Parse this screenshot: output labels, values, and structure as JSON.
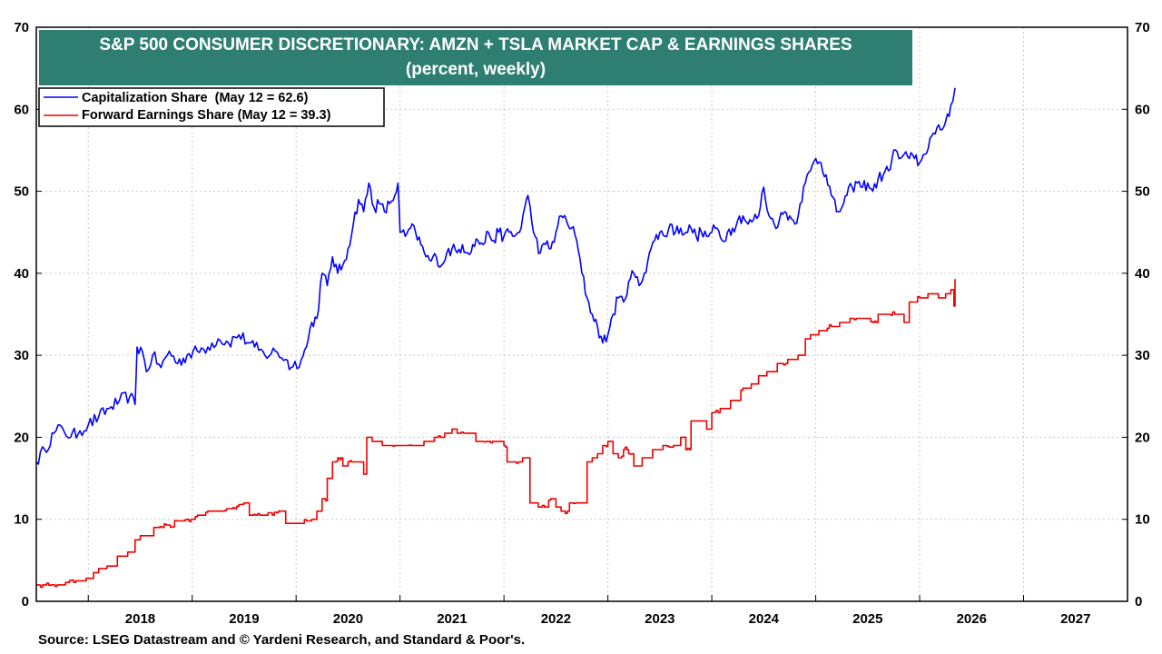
{
  "chart_data": {
    "type": "line",
    "title_line1": "S&P 500 CONSUMER DISCRETIONARY: AMZN + TSLA MARKET CAP & EARNINGS SHARES",
    "title_line2": "(percent, weekly)",
    "xlabel": "",
    "ylabel": "",
    "x_range": [
      2017.5,
      2028.0
    ],
    "ylim": [
      0,
      70
    ],
    "y_ticks": [
      0,
      10,
      20,
      30,
      40,
      50,
      60,
      70
    ],
    "x_tick_labels": [
      "2018",
      "2019",
      "2020",
      "2021",
      "2022",
      "2023",
      "2024",
      "2025",
      "2026",
      "2027"
    ],
    "x_tick_label_positions": [
      2018.5,
      2019.5,
      2020.5,
      2021.5,
      2022.5,
      2023.5,
      2024.5,
      2025.5,
      2026.5,
      2027.5
    ],
    "x_year_boundaries": [
      2018,
      2019,
      2020,
      2021,
      2022,
      2023,
      2024,
      2025,
      2026,
      2027,
      2028
    ],
    "grid": true,
    "legend_position": "top-left",
    "colors": {
      "title_bg": "#2e7f72",
      "cap_line": "#0000ff",
      "earn_line": "#ee0000",
      "grid": "#c8c8c8"
    },
    "series": [
      {
        "name": "Capitalization Share  (May 12 = 62.6)",
        "color": "#0000ff",
        "points": [
          [
            2017.5,
            17.0
          ],
          [
            2017.58,
            18.5
          ],
          [
            2017.67,
            20.5
          ],
          [
            2017.75,
            21.2
          ],
          [
            2017.83,
            20.0
          ],
          [
            2017.92,
            20.8
          ],
          [
            2018.0,
            21.5
          ],
          [
            2018.1,
            22.5
          ],
          [
            2018.2,
            23.5
          ],
          [
            2018.3,
            24.5
          ],
          [
            2018.4,
            25.0
          ],
          [
            2018.45,
            24.0
          ],
          [
            2018.47,
            31.0
          ],
          [
            2018.52,
            30.5
          ],
          [
            2018.56,
            28.0
          ],
          [
            2018.62,
            30.0
          ],
          [
            2018.7,
            28.5
          ],
          [
            2018.78,
            30.5
          ],
          [
            2018.86,
            29.0
          ],
          [
            2018.95,
            30.0
          ],
          [
            2019.05,
            30.5
          ],
          [
            2019.15,
            31.0
          ],
          [
            2019.25,
            32.0
          ],
          [
            2019.35,
            31.5
          ],
          [
            2019.45,
            32.5
          ],
          [
            2019.55,
            31.5
          ],
          [
            2019.6,
            31.0
          ],
          [
            2019.7,
            30.0
          ],
          [
            2019.8,
            30.5
          ],
          [
            2019.9,
            29.5
          ],
          [
            2019.95,
            28.5
          ],
          [
            2020.05,
            29.5
          ],
          [
            2020.1,
            31.0
          ],
          [
            2020.15,
            34.0
          ],
          [
            2020.2,
            34.5
          ],
          [
            2020.25,
            40.0
          ],
          [
            2020.3,
            38.5
          ],
          [
            2020.35,
            42.0
          ],
          [
            2020.4,
            40.0
          ],
          [
            2020.45,
            41.0
          ],
          [
            2020.5,
            43.0
          ],
          [
            2020.55,
            46.0
          ],
          [
            2020.6,
            49.0
          ],
          [
            2020.65,
            47.5
          ],
          [
            2020.7,
            51.0
          ],
          [
            2020.75,
            48.0
          ],
          [
            2020.8,
            48.5
          ],
          [
            2020.85,
            47.5
          ],
          [
            2020.9,
            48.5
          ],
          [
            2020.95,
            49.5
          ],
          [
            2020.98,
            51.0
          ],
          [
            2021.0,
            45.0
          ],
          [
            2021.05,
            44.5
          ],
          [
            2021.1,
            45.5
          ],
          [
            2021.15,
            45.0
          ],
          [
            2021.2,
            43.5
          ],
          [
            2021.25,
            42.0
          ],
          [
            2021.3,
            41.5
          ],
          [
            2021.35,
            42.0
          ],
          [
            2021.4,
            41.0
          ],
          [
            2021.45,
            42.5
          ],
          [
            2021.5,
            43.0
          ],
          [
            2021.55,
            42.5
          ],
          [
            2021.6,
            43.5
          ],
          [
            2021.65,
            42.5
          ],
          [
            2021.7,
            43.5
          ],
          [
            2021.75,
            44.0
          ],
          [
            2021.8,
            43.5
          ],
          [
            2021.85,
            45.0
          ],
          [
            2021.9,
            44.0
          ],
          [
            2021.95,
            45.0
          ],
          [
            2022.0,
            44.5
          ],
          [
            2022.05,
            45.0
          ],
          [
            2022.1,
            44.5
          ],
          [
            2022.15,
            45.0
          ],
          [
            2022.2,
            48.0
          ],
          [
            2022.23,
            49.5
          ],
          [
            2022.27,
            46.0
          ],
          [
            2022.3,
            44.5
          ],
          [
            2022.35,
            42.5
          ],
          [
            2022.4,
            43.5
          ],
          [
            2022.45,
            43.0
          ],
          [
            2022.5,
            45.0
          ],
          [
            2022.55,
            47.0
          ],
          [
            2022.6,
            46.5
          ],
          [
            2022.65,
            45.5
          ],
          [
            2022.7,
            44.0
          ],
          [
            2022.75,
            40.0
          ],
          [
            2022.8,
            37.0
          ],
          [
            2022.85,
            35.0
          ],
          [
            2022.9,
            33.5
          ],
          [
            2022.95,
            31.5
          ],
          [
            2023.0,
            32.5
          ],
          [
            2023.05,
            35.0
          ],
          [
            2023.1,
            37.0
          ],
          [
            2023.15,
            36.5
          ],
          [
            2023.2,
            39.0
          ],
          [
            2023.25,
            40.0
          ],
          [
            2023.3,
            38.5
          ],
          [
            2023.35,
            40.0
          ],
          [
            2023.4,
            42.5
          ],
          [
            2023.45,
            44.0
          ],
          [
            2023.5,
            45.0
          ],
          [
            2023.55,
            44.5
          ],
          [
            2023.6,
            46.0
          ],
          [
            2023.65,
            45.0
          ],
          [
            2023.7,
            45.5
          ],
          [
            2023.75,
            45.0
          ],
          [
            2023.8,
            45.5
          ],
          [
            2023.85,
            44.5
          ],
          [
            2023.9,
            45.0
          ],
          [
            2023.95,
            44.5
          ],
          [
            2024.0,
            45.0
          ],
          [
            2024.05,
            45.5
          ],
          [
            2024.1,
            44.0
          ],
          [
            2024.15,
            45.0
          ],
          [
            2024.2,
            45.5
          ],
          [
            2024.25,
            46.5
          ],
          [
            2024.3,
            47.0
          ],
          [
            2024.35,
            46.0
          ],
          [
            2024.4,
            46.5
          ],
          [
            2024.45,
            47.0
          ],
          [
            2024.5,
            50.5
          ],
          [
            2024.55,
            47.0
          ],
          [
            2024.6,
            46.0
          ],
          [
            2024.65,
            46.5
          ],
          [
            2024.7,
            47.5
          ],
          [
            2024.75,
            47.0
          ],
          [
            2024.8,
            46.0
          ],
          [
            2024.85,
            48.5
          ],
          [
            2024.9,
            51.0
          ],
          [
            2024.95,
            52.5
          ],
          [
            2025.0,
            54.0
          ],
          [
            2025.05,
            53.5
          ],
          [
            2025.1,
            52.0
          ],
          [
            2025.15,
            49.5
          ],
          [
            2025.2,
            47.5
          ],
          [
            2025.25,
            48.0
          ],
          [
            2025.3,
            49.5
          ],
          [
            2025.35,
            50.5
          ],
          [
            2025.4,
            51.0
          ],
          [
            2025.45,
            50.5
          ],
          [
            2025.5,
            51.0
          ],
          [
            2025.55,
            50.0
          ],
          [
            2025.6,
            51.5
          ],
          [
            2025.65,
            52.0
          ],
          [
            2025.7,
            52.5
          ],
          [
            2025.75,
            55.0
          ],
          [
            2025.8,
            54.0
          ],
          [
            2025.85,
            54.5
          ],
          [
            2025.9,
            54.0
          ],
          [
            2025.95,
            54.0
          ],
          [
            2026.0,
            53.5
          ],
          [
            2026.05,
            54.5
          ],
          [
            2026.1,
            56.5
          ],
          [
            2026.15,
            57.0
          ],
          [
            2026.2,
            57.5
          ],
          [
            2026.25,
            58.5
          ],
          [
            2026.3,
            60.5
          ],
          [
            2026.34,
            62.6
          ]
        ]
      },
      {
        "name": "Forward Earnings Share (May 12 = 39.3)",
        "color": "#ee0000",
        "points": [
          [
            2017.5,
            2.0
          ],
          [
            2017.7,
            2.0
          ],
          [
            2017.8,
            2.3
          ],
          [
            2017.9,
            2.5
          ],
          [
            2018.0,
            2.8
          ],
          [
            2018.05,
            3.5
          ],
          [
            2018.1,
            4.0
          ],
          [
            2018.2,
            4.3
          ],
          [
            2018.3,
            5.5
          ],
          [
            2018.4,
            6.0
          ],
          [
            2018.45,
            7.5
          ],
          [
            2018.5,
            8.0
          ],
          [
            2018.55,
            8.0
          ],
          [
            2018.65,
            9.0
          ],
          [
            2018.75,
            9.3
          ],
          [
            2018.85,
            9.8
          ],
          [
            2018.95,
            10.0
          ],
          [
            2019.05,
            10.5
          ],
          [
            2019.15,
            11.0
          ],
          [
            2019.25,
            11.0
          ],
          [
            2019.35,
            11.3
          ],
          [
            2019.45,
            11.8
          ],
          [
            2019.5,
            12.0
          ],
          [
            2019.55,
            10.5
          ],
          [
            2019.65,
            10.5
          ],
          [
            2019.75,
            10.8
          ],
          [
            2019.85,
            11.0
          ],
          [
            2019.9,
            9.5
          ],
          [
            2020.0,
            9.5
          ],
          [
            2020.1,
            9.8
          ],
          [
            2020.15,
            10.0
          ],
          [
            2020.2,
            11.0
          ],
          [
            2020.25,
            12.5
          ],
          [
            2020.3,
            15.0
          ],
          [
            2020.35,
            17.0
          ],
          [
            2020.4,
            17.5
          ],
          [
            2020.45,
            16.5
          ],
          [
            2020.5,
            17.0
          ],
          [
            2020.55,
            17.0
          ],
          [
            2020.6,
            17.0
          ],
          [
            2020.65,
            15.5
          ],
          [
            2020.68,
            20.0
          ],
          [
            2020.75,
            19.5
          ],
          [
            2020.85,
            19.0
          ],
          [
            2020.95,
            19.0
          ],
          [
            2021.05,
            19.0
          ],
          [
            2021.15,
            19.0
          ],
          [
            2021.25,
            19.5
          ],
          [
            2021.35,
            20.0
          ],
          [
            2021.45,
            20.5
          ],
          [
            2021.5,
            21.0
          ],
          [
            2021.55,
            20.5
          ],
          [
            2021.65,
            20.5
          ],
          [
            2021.75,
            19.5
          ],
          [
            2021.85,
            19.5
          ],
          [
            2021.95,
            19.5
          ],
          [
            2022.0,
            19.0
          ],
          [
            2022.03,
            17.0
          ],
          [
            2022.1,
            17.0
          ],
          [
            2022.2,
            17.5
          ],
          [
            2022.25,
            12.0
          ],
          [
            2022.35,
            11.5
          ],
          [
            2022.45,
            12.5
          ],
          [
            2022.5,
            11.5
          ],
          [
            2022.55,
            11.0
          ],
          [
            2022.65,
            12.0
          ],
          [
            2022.75,
            12.0
          ],
          [
            2022.8,
            17.0
          ],
          [
            2022.85,
            17.5
          ],
          [
            2022.9,
            18.0
          ],
          [
            2022.95,
            19.0
          ],
          [
            2023.0,
            19.5
          ],
          [
            2023.05,
            18.0
          ],
          [
            2023.1,
            17.5
          ],
          [
            2023.15,
            18.5
          ],
          [
            2023.2,
            18.0
          ],
          [
            2023.25,
            16.5
          ],
          [
            2023.35,
            17.5
          ],
          [
            2023.45,
            18.5
          ],
          [
            2023.55,
            19.0
          ],
          [
            2023.65,
            19.0
          ],
          [
            2023.7,
            20.0
          ],
          [
            2023.75,
            18.5
          ],
          [
            2023.8,
            22.0
          ],
          [
            2023.9,
            22.0
          ],
          [
            2023.95,
            21.0
          ],
          [
            2024.0,
            23.0
          ],
          [
            2024.1,
            23.5
          ],
          [
            2024.2,
            24.5
          ],
          [
            2024.3,
            26.0
          ],
          [
            2024.4,
            26.5
          ],
          [
            2024.45,
            27.5
          ],
          [
            2024.55,
            28.0
          ],
          [
            2024.65,
            29.0
          ],
          [
            2024.75,
            29.5
          ],
          [
            2024.85,
            30.0
          ],
          [
            2024.9,
            32.0
          ],
          [
            2024.95,
            32.5
          ],
          [
            2025.05,
            33.0
          ],
          [
            2025.15,
            33.5
          ],
          [
            2025.25,
            34.0
          ],
          [
            2025.35,
            34.5
          ],
          [
            2025.45,
            34.5
          ],
          [
            2025.55,
            34.0
          ],
          [
            2025.6,
            35.0
          ],
          [
            2025.7,
            35.0
          ],
          [
            2025.8,
            35.0
          ],
          [
            2025.85,
            34.0
          ],
          [
            2025.9,
            36.5
          ],
          [
            2026.0,
            37.0
          ],
          [
            2026.1,
            37.5
          ],
          [
            2026.2,
            37.0
          ],
          [
            2026.25,
            37.5
          ],
          [
            2026.3,
            38.0
          ],
          [
            2026.33,
            36.0
          ],
          [
            2026.34,
            39.3
          ]
        ]
      }
    ]
  },
  "source": "Source: LSEG Datastream and © Yardeni Research, and Standard & Poor's."
}
